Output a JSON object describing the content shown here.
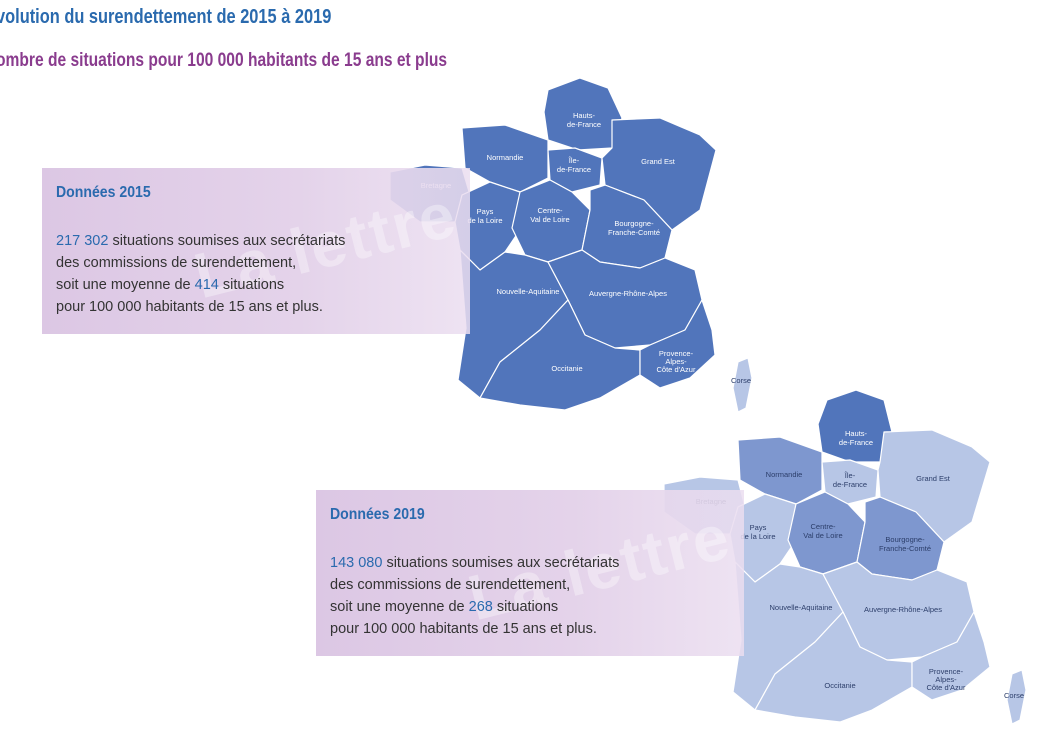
{
  "title": "volution du surendettement de 2015 à 2019",
  "subtitle": "ombre de situations pour 100 000 habitants de 15 ans et plus",
  "watermark": "La lettre",
  "colors": {
    "title_blue": "#2a6aae",
    "subtitle_purple": "#8a3c8e",
    "panel_bg": "#dcc7e4",
    "shade_high": "#5175bb",
    "shade_mid": "#7e97cf",
    "shade_low": "#b7c6e6"
  },
  "map_2015": {
    "header": "Données 2015",
    "count": "217 302",
    "line1_rest": " situations soumises aux secrétariats",
    "line2": "des commissions de surendettement,",
    "line3_pre": "soit une moyenne de ",
    "average": "414",
    "line3_post": " situations",
    "line4": "pour 100 000 habitants de 15 ans et plus.",
    "regions": {
      "hdf": "Hauts-\nde-France",
      "nor": "Normandie",
      "idf": "Île-\nde-France",
      "ge": "Grand Est",
      "bre": "Bretagne",
      "pdl": "Pays\nde la Loire",
      "cvl": "Centre-\nVal de Loire",
      "bfc": "Bourgogne-\nFranche-Comté",
      "na": "Nouvelle-Aquitaine",
      "ara": "Auvergne-Rhône-Alpes",
      "occ": "Occitanie",
      "paca": "Provence-\nAlpes-\nCôte d'Azur",
      "cor": "Corse"
    }
  },
  "map_2019": {
    "header": "Données 2019",
    "count": "143 080",
    "line1_rest": " situations soumises aux secrétariats",
    "line2": "des commissions de surendettement,",
    "line3_pre": "soit une moyenne de ",
    "average": "268",
    "line3_post": " situations",
    "line4": "pour 100 000 habitants de 15 ans et plus.",
    "regions": {
      "hdf": "Hauts-\nde-France",
      "nor": "Normandie",
      "idf": "Île-\nde-France",
      "ge": "Grand Est",
      "bre": "Bretagne",
      "pdl": "Pays\nde la Loire",
      "cvl": "Centre-\nVal de Loire",
      "bfc": "Bourgogne-\nFranche-Comté",
      "na": "Nouvelle-Aquitaine",
      "ara": "Auvergne-Rhône-Alpes",
      "occ": "Occitanie",
      "paca": "Provence-\nAlpes-\nCôte d'Azur",
      "cor": "Corse"
    },
    "shading": {
      "hdf": "high",
      "nor": "mid",
      "idf": "low",
      "ge": "low",
      "bre": "low",
      "pdl": "low",
      "cvl": "mid",
      "bfc": "mid",
      "na": "low",
      "ara": "low",
      "occ": "low",
      "paca": "low",
      "cor": "low"
    }
  }
}
